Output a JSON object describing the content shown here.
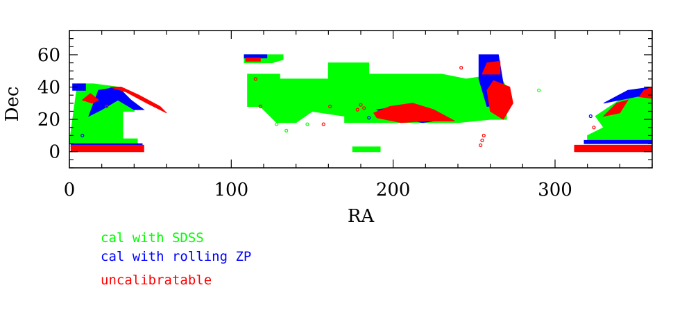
{
  "chart_data": {
    "type": "scatter",
    "xlabel": "RA",
    "ylabel": "Dec",
    "xlim": [
      0,
      360
    ],
    "ylim": [
      -10,
      75
    ],
    "xticks": [
      0,
      100,
      200,
      300
    ],
    "yticks": [
      0,
      20,
      40,
      60
    ],
    "grid": false,
    "legend_placement": "below-left",
    "series": [
      {
        "name": "cal with SDSS",
        "color": "#00ff00",
        "regions": [
          [
            [
              0,
              5
            ],
            [
              5,
              42
            ],
            [
              15,
              42
            ],
            [
              30,
              40
            ],
            [
              40,
              30
            ],
            [
              40,
              25
            ],
            [
              33,
              25
            ],
            [
              33,
              8
            ],
            [
              42,
              8
            ],
            [
              42,
              5
            ]
          ],
          [
            [
              110,
              28
            ],
            [
              110,
              48
            ],
            [
              130,
              48
            ],
            [
              130,
              45
            ],
            [
              160,
              45
            ],
            [
              160,
              55
            ],
            [
              185,
              55
            ],
            [
              185,
              48
            ],
            [
              230,
              48
            ],
            [
              245,
              45
            ],
            [
              265,
              48
            ],
            [
              270,
              40
            ],
            [
              270,
              20
            ],
            [
              260,
              20
            ],
            [
              240,
              18
            ],
            [
              170,
              18
            ],
            [
              170,
              22
            ],
            [
              150,
              25
            ],
            [
              140,
              18
            ],
            [
              128,
              18
            ],
            [
              118,
              28
            ]
          ],
          [
            [
              108,
              55
            ],
            [
              108,
              60
            ],
            [
              132,
              60
            ],
            [
              132,
              57
            ],
            [
              125,
              55
            ]
          ],
          [
            [
              175,
              0
            ],
            [
              175,
              3
            ],
            [
              192,
              3
            ],
            [
              192,
              0
            ]
          ],
          [
            [
              320,
              5
            ],
            [
              320,
              10
            ],
            [
              330,
              15
            ],
            [
              325,
              22
            ],
            [
              340,
              32
            ],
            [
              352,
              36
            ],
            [
              360,
              36
            ],
            [
              360,
              5
            ]
          ]
        ]
      },
      {
        "name": "cal with rolling ZP",
        "color": "#0000ff",
        "regions": [
          [
            [
              2,
              38
            ],
            [
              2,
              42
            ],
            [
              10,
              42
            ],
            [
              10,
              38
            ]
          ],
          [
            [
              12,
              22
            ],
            [
              18,
              38
            ],
            [
              30,
              40
            ],
            [
              38,
              32
            ],
            [
              46,
              26
            ],
            [
              40,
              26
            ],
            [
              30,
              32
            ],
            [
              20,
              26
            ]
          ],
          [
            [
              1,
              3
            ],
            [
              1,
              5
            ],
            [
              45,
              5
            ],
            [
              45,
              3
            ]
          ],
          [
            [
              108,
              58
            ],
            [
              108,
              60
            ],
            [
              122,
              60
            ],
            [
              122,
              58
            ]
          ],
          [
            [
              190,
              26
            ],
            [
              205,
              28
            ],
            [
              222,
              24
            ],
            [
              232,
              20
            ],
            [
              218,
              18
            ],
            [
              200,
              22
            ]
          ],
          [
            [
              253,
              45
            ],
            [
              253,
              60
            ],
            [
              265,
              60
            ],
            [
              270,
              30
            ],
            [
              258,
              28
            ]
          ],
          [
            [
              330,
              30
            ],
            [
              345,
              38
            ],
            [
              360,
              40
            ],
            [
              360,
              36
            ],
            [
              345,
              33
            ]
          ],
          [
            [
              318,
              5
            ],
            [
              318,
              7
            ],
            [
              360,
              7
            ],
            [
              360,
              5
            ]
          ]
        ]
      },
      {
        "name": "uncalibratable",
        "color": "#ff0000",
        "regions": [
          [
            [
              1,
              0
            ],
            [
              1,
              4
            ],
            [
              46,
              4
            ],
            [
              46,
              0
            ]
          ],
          [
            [
              25,
              40
            ],
            [
              35,
              37
            ],
            [
              48,
              30
            ],
            [
              60,
              24
            ],
            [
              56,
              28
            ],
            [
              43,
              35
            ],
            [
              32,
              40
            ]
          ],
          [
            [
              8,
              32
            ],
            [
              13,
              36
            ],
            [
              18,
              32
            ],
            [
              14,
              30
            ]
          ],
          [
            [
              109,
              56
            ],
            [
              109,
              58
            ],
            [
              118,
              58
            ],
            [
              118,
              56
            ]
          ],
          [
            [
              188,
              24
            ],
            [
              198,
              28
            ],
            [
              212,
              30
            ],
            [
              225,
              26
            ],
            [
              238,
              19
            ],
            [
              220,
              19
            ],
            [
              205,
              18
            ],
            [
              190,
              21
            ]
          ],
          [
            [
              255,
              48
            ],
            [
              258,
              55
            ],
            [
              266,
              56
            ],
            [
              266,
              48
            ]
          ],
          [
            [
              258,
              38
            ],
            [
              262,
              44
            ],
            [
              272,
              40
            ],
            [
              274,
              30
            ],
            [
              268,
              20
            ],
            [
              260,
              25
            ]
          ],
          [
            [
              312,
              0
            ],
            [
              312,
              4
            ],
            [
              360,
              4
            ],
            [
              360,
              0
            ]
          ],
          [
            [
              330,
              22
            ],
            [
              338,
              30
            ],
            [
              345,
              32
            ],
            [
              340,
              24
            ]
          ],
          [
            [
              352,
              34
            ],
            [
              355,
              38
            ],
            [
              360,
              40
            ],
            [
              360,
              33
            ]
          ]
        ]
      }
    ],
    "points": [
      {
        "ra": 23,
        "dec": 28,
        "color": "#ff0000"
      },
      {
        "ra": 8,
        "dec": 10,
        "color": "#0000ff"
      },
      {
        "ra": 11,
        "dec": 12,
        "color": "#00ff00"
      },
      {
        "ra": 115,
        "dec": 45,
        "color": "#ff0000"
      },
      {
        "ra": 118,
        "dec": 28,
        "color": "#ff0000"
      },
      {
        "ra": 128,
        "dec": 17,
        "color": "#00ff00"
      },
      {
        "ra": 131,
        "dec": 20,
        "color": "#00ff00"
      },
      {
        "ra": 134,
        "dec": 13,
        "color": "#00ff00"
      },
      {
        "ra": 147,
        "dec": 17,
        "color": "#00ff00"
      },
      {
        "ra": 157,
        "dec": 17,
        "color": "#ff0000"
      },
      {
        "ra": 161,
        "dec": 28,
        "color": "#ff0000"
      },
      {
        "ra": 180,
        "dec": 29,
        "color": "#ff0000"
      },
      {
        "ra": 178,
        "dec": 26,
        "color": "#ff0000"
      },
      {
        "ra": 182,
        "dec": 27,
        "color": "#ff0000"
      },
      {
        "ra": 185,
        "dec": 21,
        "color": "#0000ff"
      },
      {
        "ra": 242,
        "dec": 52,
        "color": "#ff0000"
      },
      {
        "ra": 254,
        "dec": 4,
        "color": "#ff0000"
      },
      {
        "ra": 255,
        "dec": 7,
        "color": "#ff0000"
      },
      {
        "ra": 256,
        "dec": 10,
        "color": "#ff0000"
      },
      {
        "ra": 290,
        "dec": 38,
        "color": "#00ff00"
      },
      {
        "ra": 324,
        "dec": 15,
        "color": "#ff0000"
      },
      {
        "ra": 322,
        "dec": 22,
        "color": "#0000ff"
      }
    ]
  },
  "legend": [
    {
      "label": "cal with SDSS",
      "color": "#00ff00"
    },
    {
      "label": "cal with rolling ZP",
      "color": "#0000ff"
    },
    {
      "label": "uncalibratable",
      "color": "#ff0000"
    }
  ]
}
